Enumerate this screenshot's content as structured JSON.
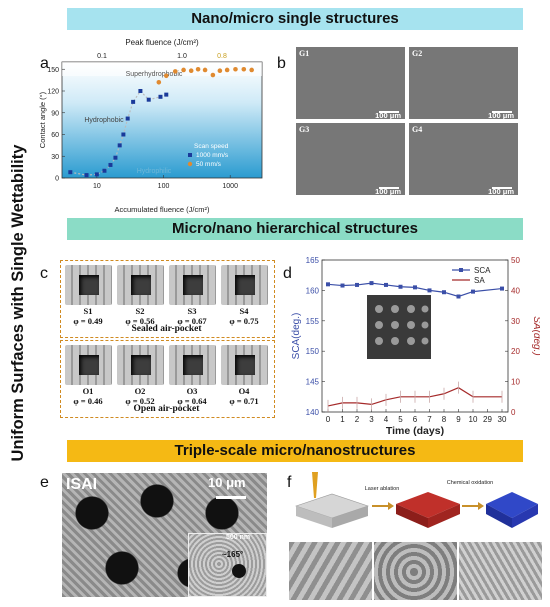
{
  "side_title": "Uniform Surfaces with Single Wettability",
  "banners": {
    "top": "Nano/micro single structures",
    "mid": "Micro/nano hierarchical structures",
    "bottom": "Triple-scale micro/nanostructures"
  },
  "colors": {
    "banner_top": "#a6e3ef",
    "banner_mid": "#8bdcc6",
    "banner_bottom": "#f5b914",
    "sca": "#3b4fa8",
    "sa": "#a52a2a"
  },
  "panel_letters": [
    "a",
    "b",
    "c",
    "d",
    "e",
    "f"
  ],
  "panel_a": {
    "top_axis_title": "Peak fluence (J/cm²)",
    "top_ticks": [
      "0.1",
      "1.0",
      "0.8"
    ],
    "ylabel": "Contact angle (°)",
    "xlabel": "Accumulated fluence (J/cm²)",
    "yticks": [
      "0",
      "30",
      "60",
      "90",
      "120",
      "150"
    ],
    "xticks": [
      "10",
      "100",
      "1000"
    ],
    "region_labels": [
      "Superhydrophobic",
      "Hydrophobic",
      "Hydrophilic"
    ],
    "legend_title": "Scan speed",
    "legend_items": [
      "1000 mm/s",
      "50 mm/s"
    ]
  },
  "panel_b": {
    "labels": [
      "G1",
      "G2",
      "G3",
      "G4"
    ],
    "scale": "100 μm"
  },
  "panel_c": {
    "sealed": [
      {
        "name": "S1",
        "phi": "φ = 0.49"
      },
      {
        "name": "S2",
        "phi": "φ = 0.56"
      },
      {
        "name": "S3",
        "phi": "φ = 0.67"
      },
      {
        "name": "S4",
        "phi": "φ = 0.75"
      }
    ],
    "open": [
      {
        "name": "O1",
        "phi": "φ = 0.46"
      },
      {
        "name": "O2",
        "phi": "φ = 0.52"
      },
      {
        "name": "O3",
        "phi": "φ = 0.64"
      },
      {
        "name": "O4",
        "phi": "φ = 0.71"
      }
    ],
    "sealed_caption": "Sealed air-pocket",
    "open_caption": "Open air-pocket"
  },
  "panel_e": {
    "label": "ISAI",
    "scale_main": "10 μm",
    "scale_inset": "500 nm",
    "angle": "~165°"
  },
  "panel_f": {
    "steps": [
      "Laser ablation",
      "Chemical oxidation"
    ]
  },
  "chart_data": [
    {
      "type": "scatter",
      "title": "",
      "xlabel": "Accumulated fluence (J/cm²)",
      "ylabel": "Contact angle (°)",
      "x_scale": "log",
      "xlim": [
        3,
        3000
      ],
      "ylim": [
        0,
        160
      ],
      "series": [
        {
          "name": "1000 mm/s",
          "x": [
            4,
            7,
            10,
            13,
            16,
            19,
            22,
            25,
            29,
            35,
            45,
            60,
            90,
            110
          ],
          "y": [
            8,
            4,
            5,
            10,
            18,
            28,
            45,
            60,
            82,
            105,
            120,
            108,
            112,
            115
          ]
        },
        {
          "name": "50 mm/s",
          "x": [
            85,
            110,
            150,
            200,
            260,
            330,
            420,
            550,
            700,
            900,
            1200,
            1600,
            2100
          ],
          "y": [
            132,
            141,
            147,
            149,
            148,
            150,
            149,
            142,
            148,
            149,
            150,
            150,
            149
          ]
        }
      ]
    },
    {
      "type": "line",
      "title": "",
      "xlabel": "Time (days)",
      "ylabel": "SCA(deg.)",
      "y2label": "SA(deg.)",
      "categories": [
        "0",
        "1",
        "2",
        "3",
        "4",
        "5",
        "6",
        "7",
        "8",
        "9",
        "10",
        "29",
        "30"
      ],
      "ylim": [
        140,
        165
      ],
      "y2lim": [
        0,
        50
      ],
      "yticks": [
        "140",
        "145",
        "150",
        "155",
        "160",
        "165"
      ],
      "y2ticks": [
        "0",
        "10",
        "20",
        "30",
        "40",
        "50"
      ],
      "series": [
        {
          "name": "SCA",
          "axis": "left",
          "values": [
            161.0,
            160.8,
            160.9,
            161.2,
            160.9,
            160.6,
            160.5,
            160.0,
            159.7,
            159.0,
            159.8,
            null,
            160.3
          ]
        },
        {
          "name": "SA",
          "axis": "right",
          "values": [
            2.0,
            3.0,
            3.0,
            2.5,
            4.0,
            5.0,
            5.0,
            5.0,
            6.0,
            8.0,
            5.0,
            null,
            5.0
          ]
        }
      ],
      "legend": "top-right"
    }
  ]
}
